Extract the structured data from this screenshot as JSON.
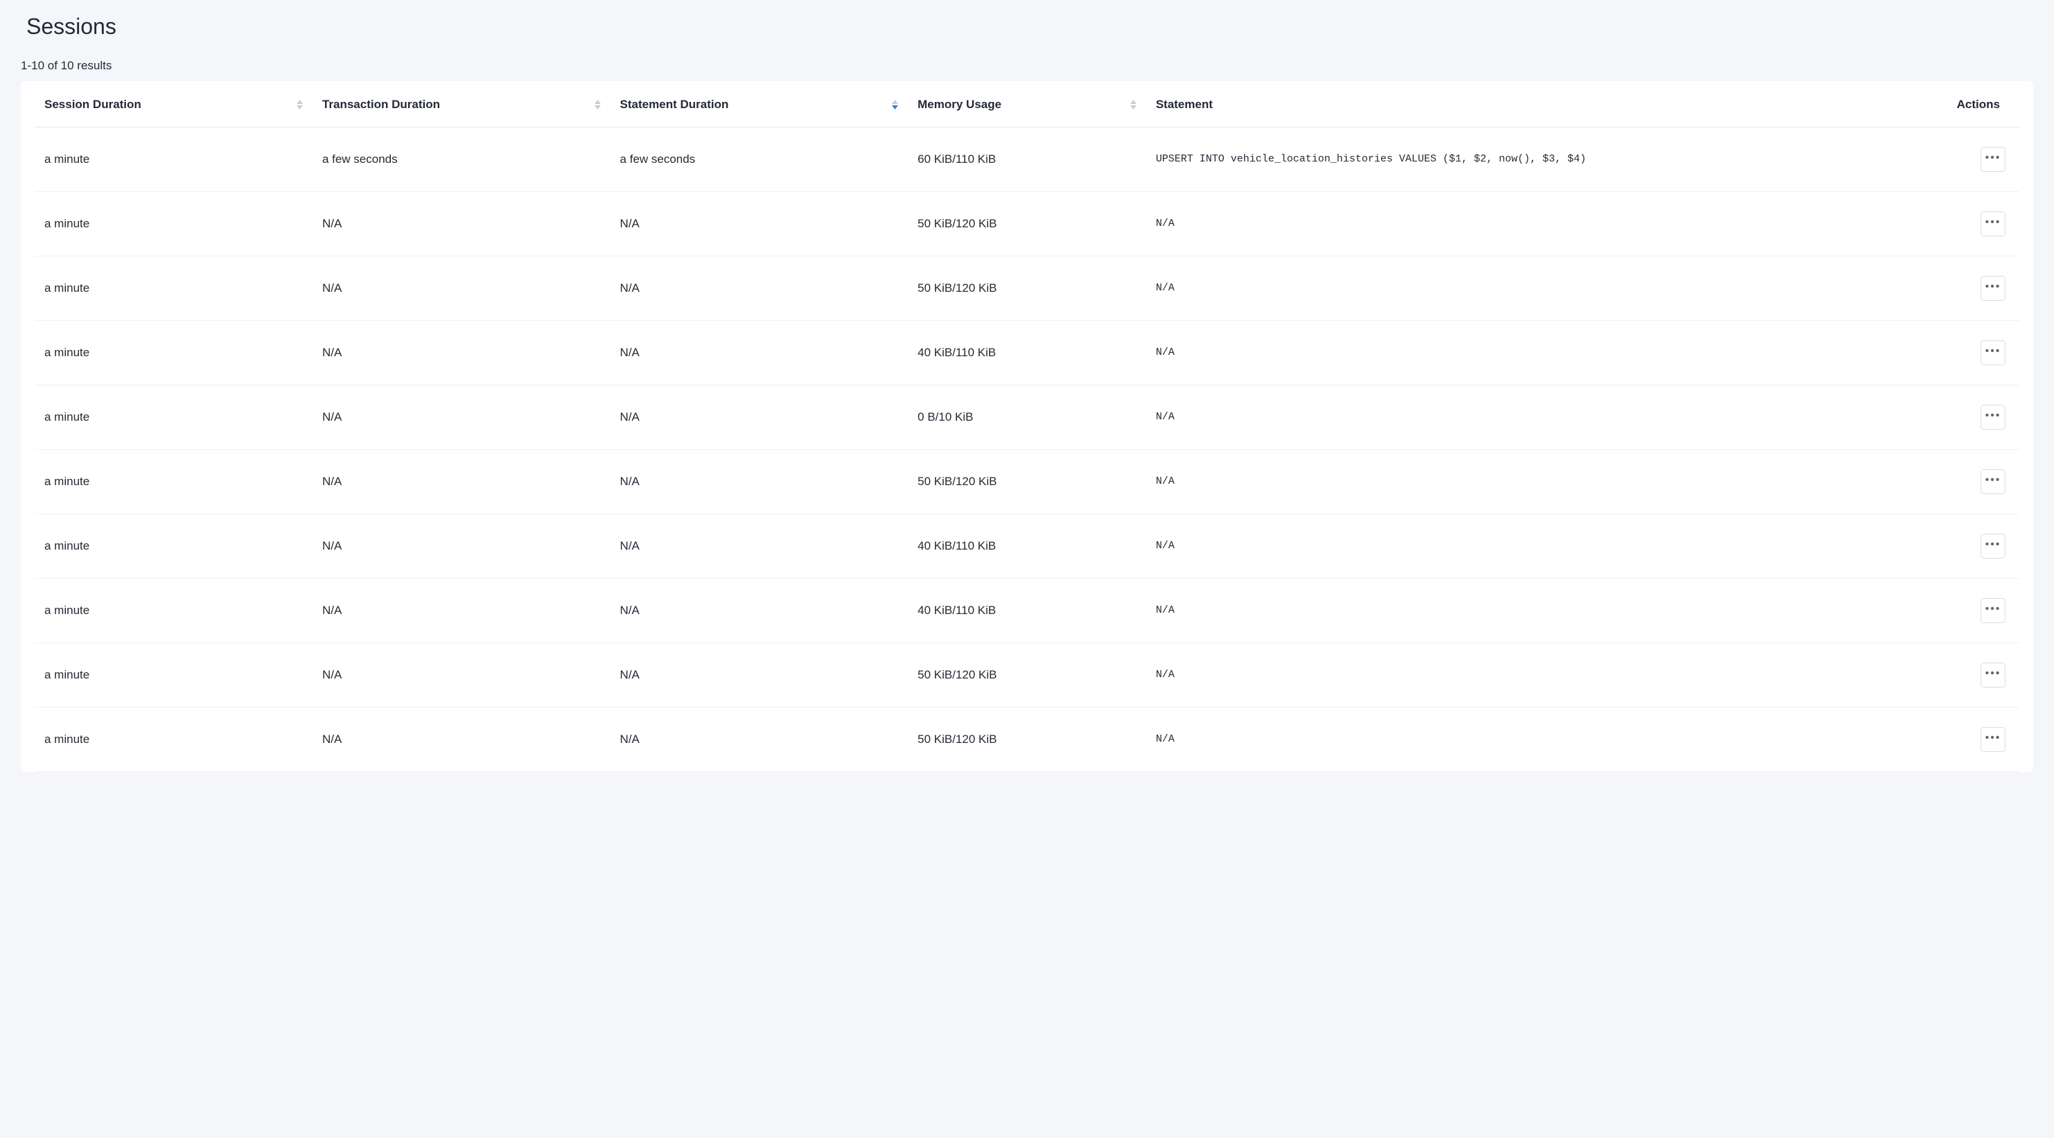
{
  "page": {
    "title": "Sessions",
    "results_label": "1-10 of 10 results"
  },
  "colors": {
    "page_bg": "#f5f6fa",
    "card_bg": "#ffffff",
    "text": "#242a35",
    "border": "#e8eaf0",
    "row_border": "#eef0f5",
    "sort_inactive": "#c7ccd6",
    "sort_active": "#2f80ed",
    "btn_border": "#d9dce3"
  },
  "table": {
    "columns": [
      {
        "key": "session_duration",
        "label": "Session Duration",
        "sortable": true,
        "sort_state": "none"
      },
      {
        "key": "transaction_duration",
        "label": "Transaction Duration",
        "sortable": true,
        "sort_state": "none"
      },
      {
        "key": "statement_duration",
        "label": "Statement Duration",
        "sortable": true,
        "sort_state": "desc"
      },
      {
        "key": "memory_usage",
        "label": "Memory Usage",
        "sortable": true,
        "sort_state": "none"
      },
      {
        "key": "statement",
        "label": "Statement",
        "sortable": false,
        "sort_state": "none"
      },
      {
        "key": "actions",
        "label": "Actions",
        "sortable": false,
        "sort_state": "none"
      }
    ],
    "rows": [
      {
        "session_duration": "a minute",
        "transaction_duration": "a few seconds",
        "statement_duration": "a few seconds",
        "memory_usage": "60 KiB/110 KiB",
        "statement": "UPSERT INTO vehicle_location_histories VALUES ($1, $2, now(), $3, $4)"
      },
      {
        "session_duration": "a minute",
        "transaction_duration": "N/A",
        "statement_duration": "N/A",
        "memory_usage": "50 KiB/120 KiB",
        "statement": "N/A"
      },
      {
        "session_duration": "a minute",
        "transaction_duration": "N/A",
        "statement_duration": "N/A",
        "memory_usage": "50 KiB/120 KiB",
        "statement": "N/A"
      },
      {
        "session_duration": "a minute",
        "transaction_duration": "N/A",
        "statement_duration": "N/A",
        "memory_usage": "40 KiB/110 KiB",
        "statement": "N/A"
      },
      {
        "session_duration": "a minute",
        "transaction_duration": "N/A",
        "statement_duration": "N/A",
        "memory_usage": "0 B/10 KiB",
        "statement": "N/A"
      },
      {
        "session_duration": "a minute",
        "transaction_duration": "N/A",
        "statement_duration": "N/A",
        "memory_usage": "50 KiB/120 KiB",
        "statement": "N/A"
      },
      {
        "session_duration": "a minute",
        "transaction_duration": "N/A",
        "statement_duration": "N/A",
        "memory_usage": "40 KiB/110 KiB",
        "statement": "N/A"
      },
      {
        "session_duration": "a minute",
        "transaction_duration": "N/A",
        "statement_duration": "N/A",
        "memory_usage": "40 KiB/110 KiB",
        "statement": "N/A"
      },
      {
        "session_duration": "a minute",
        "transaction_duration": "N/A",
        "statement_duration": "N/A",
        "memory_usage": "50 KiB/120 KiB",
        "statement": "N/A"
      },
      {
        "session_duration": "a minute",
        "transaction_duration": "N/A",
        "statement_duration": "N/A",
        "memory_usage": "50 KiB/120 KiB",
        "statement": "N/A"
      }
    ]
  }
}
